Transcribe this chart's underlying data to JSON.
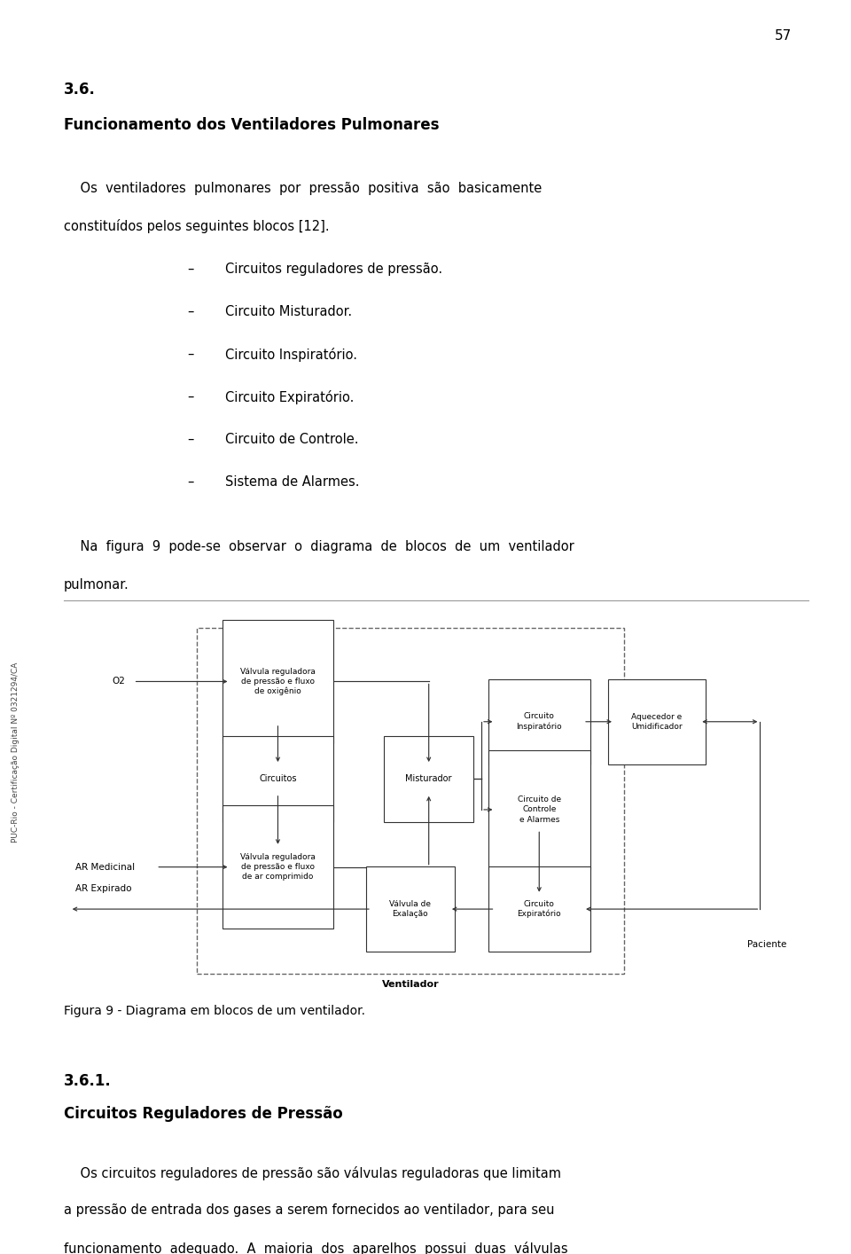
{
  "page_number": "57",
  "bg_color": "#ffffff",
  "section_title_1": "3.6.",
  "section_title_2": "Funcionamento dos Ventiladores Pulmonares",
  "bullet_items": [
    "Circuitos reguladores de pressão.",
    "Circuito Misturador.",
    "Circuito Inspiratório.",
    "Circuito Expiratório.",
    "Circuito de Controle.",
    "Sistema de Alarmes."
  ],
  "figure_caption": "Figura 9 - Diagrama em blocos de um ventilador.",
  "section_title_3": "3.6.1.",
  "section_title_4": "Circuitos Reguladores de Pressão",
  "sidebar_text": "PUC-Rio - Certificação Digital Nº 0321294/CA"
}
